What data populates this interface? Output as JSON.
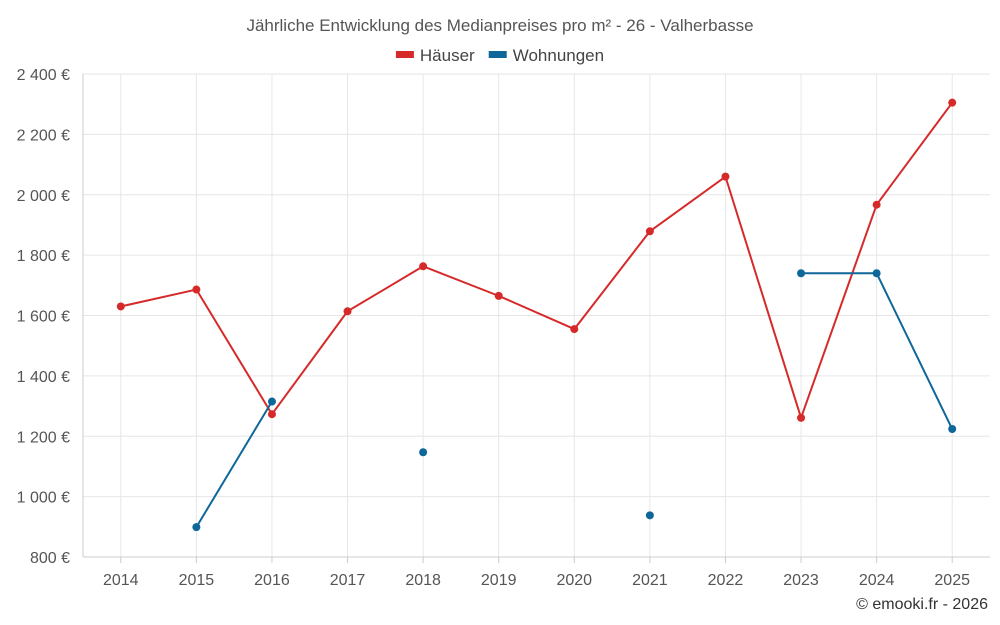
{
  "chart_data": {
    "type": "line",
    "title": "Jährliche Entwicklung des Medianpreises pro m² - 26 - Valherbasse",
    "categories": [
      "2014",
      "2015",
      "2016",
      "2017",
      "2018",
      "2019",
      "2020",
      "2021",
      "2022",
      "2023",
      "2024",
      "2025"
    ],
    "series": [
      {
        "name": "Häuser",
        "color": "#d62a2a",
        "values": [
          1630,
          1686,
          1273,
          1614,
          1763,
          1665,
          1555,
          1879,
          2060,
          1261,
          1967,
          2305
        ]
      },
      {
        "name": "Wohnungen",
        "color": "#0f6699",
        "values": [
          null,
          899,
          1315,
          null,
          1147,
          null,
          null,
          938,
          null,
          1740,
          1740,
          1224
        ]
      }
    ],
    "ylim": [
      800,
      2400
    ],
    "yticks": [
      800,
      1000,
      1200,
      1400,
      1600,
      1800,
      2000,
      2200,
      2400
    ],
    "ytick_labels": [
      "800 €",
      "1 000 €",
      "1 200 €",
      "1 400 €",
      "1 600 €",
      "1 800 €",
      "2 000 €",
      "2 200 €",
      "2 400 €"
    ],
    "xlabel": "",
    "ylabel": "",
    "grid": true,
    "legend_position": "top-center"
  },
  "credit": "© emooki.fr - 2026"
}
